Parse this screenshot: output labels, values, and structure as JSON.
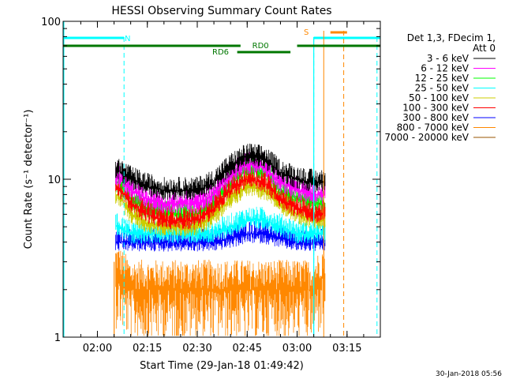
{
  "chart_data": {
    "type": "line",
    "title": "HESSI Observing Summary Count Rates",
    "xlabel": "Start Time (29-Jan-18 01:49:42)",
    "ylabel": "Count Rate (s⁻¹ detector⁻¹)",
    "yscale": "log",
    "xlim": [
      "01:49:42",
      "03:25:00"
    ],
    "ylim": [
      1,
      100
    ],
    "x_ticks": [
      "02:00",
      "02:15",
      "02:30",
      "02:45",
      "03:00",
      "03:15"
    ],
    "y_ticks": [
      "1",
      "10",
      "100"
    ],
    "grid": false,
    "legend_placement": "right",
    "legend_header": [
      "Det 1,3, FDecim 1,",
      "Att 0"
    ],
    "timestamp": "30-Jan-2018 05:56",
    "annotations": {
      "night_label": "N",
      "saa_label": "S",
      "rd0_label": "RD0",
      "rd6_label": "RD6"
    },
    "colors": {
      "3-6": "#000000",
      "6-12": "#ff00ff",
      "12-25": "#00ff00",
      "25-50": "#00ffff",
      "50-100": "#cccc00",
      "100-300": "#ff0000",
      "300-800": "#0000ff",
      "800-7000": "#ff8800",
      "7000-20000": "#995500",
      "night": "#00ffff",
      "saa": "#ff8800",
      "rd": "#007700"
    },
    "markers": {
      "night_bars": [
        [
          "01:49:42",
          "02:08:00"
        ],
        [
          "03:05:00",
          "03:25:00"
        ]
      ],
      "night_boundaries": [
        "02:08:00",
        "03:05:00",
        "03:24:00"
      ],
      "saa_bar": [
        "03:10:00",
        "03:15:00"
      ],
      "saa_boundaries": [
        "03:08:00",
        "03:14:00"
      ],
      "rd0_bars": [
        [
          "01:49:42",
          "02:43:00"
        ],
        [
          "03:00:00",
          "03:25:00"
        ]
      ],
      "rd0_label_time": "02:49:00",
      "rd6_bar": [
        "02:42:00",
        "02:58:00"
      ],
      "rd6_label_time": "02:37:00"
    },
    "data_window": [
      "02:05:30",
      "03:08:30"
    ],
    "series": [
      {
        "name": "3 - 6 keV",
        "color": "#000000",
        "x": [
          "02:06",
          "02:10",
          "02:15",
          "02:20",
          "02:25",
          "02:30",
          "02:35",
          "02:40",
          "02:45",
          "02:50",
          "02:55",
          "03:00",
          "03:05",
          "03:08"
        ],
        "values": [
          11.5,
          10.0,
          9.0,
          8.5,
          8.5,
          8.5,
          9.5,
          12.0,
          14.0,
          13.5,
          11.0,
          10.0,
          9.5,
          9.5
        ]
      },
      {
        "name": "6 - 12 keV",
        "color": "#ff00ff",
        "x": [
          "02:06",
          "02:10",
          "02:15",
          "02:20",
          "02:25",
          "02:30",
          "02:35",
          "02:40",
          "02:45",
          "02:50",
          "02:55",
          "03:00",
          "03:05",
          "03:08"
        ],
        "values": [
          10.5,
          8.5,
          7.5,
          7.0,
          7.0,
          7.0,
          8.0,
          10.5,
          12.5,
          12.0,
          9.5,
          8.5,
          8.0,
          8.0
        ]
      },
      {
        "name": "12 - 25 keV",
        "color": "#00ff00",
        "x": [
          "02:06",
          "02:10",
          "02:15",
          "02:20",
          "02:25",
          "02:30",
          "02:35",
          "02:40",
          "02:45",
          "02:50",
          "02:55",
          "03:00",
          "03:05",
          "03:08"
        ],
        "values": [
          9.5,
          7.5,
          6.5,
          6.0,
          6.0,
          6.0,
          7.0,
          9.5,
          11.5,
          11.0,
          8.5,
          7.5,
          7.0,
          7.0
        ]
      },
      {
        "name": "25 - 50 keV",
        "color": "#00ffff",
        "x": [
          "02:06",
          "02:10",
          "02:15",
          "02:20",
          "02:25",
          "02:30",
          "02:35",
          "02:40",
          "02:45",
          "02:50",
          "02:55",
          "03:00",
          "03:05",
          "03:08"
        ],
        "values": [
          5.0,
          4.5,
          4.5,
          4.5,
          4.5,
          4.5,
          4.5,
          5.0,
          5.5,
          5.5,
          5.0,
          4.5,
          4.5,
          4.5
        ]
      },
      {
        "name": "50 - 100 keV",
        "color": "#cccc00",
        "x": [
          "02:06",
          "02:10",
          "02:15",
          "02:20",
          "02:25",
          "02:30",
          "02:35",
          "02:40",
          "02:45",
          "02:50",
          "02:55",
          "03:00",
          "03:05",
          "03:08"
        ],
        "values": [
          8.0,
          6.0,
          5.2,
          5.0,
          5.0,
          5.0,
          5.8,
          7.5,
          9.0,
          8.5,
          7.0,
          6.0,
          5.5,
          5.5
        ]
      },
      {
        "name": "100 - 300 keV",
        "color": "#ff0000",
        "x": [
          "02:06",
          "02:10",
          "02:15",
          "02:20",
          "02:25",
          "02:30",
          "02:35",
          "02:40",
          "02:45",
          "02:50",
          "02:55",
          "03:00",
          "03:05",
          "03:08"
        ],
        "values": [
          9.0,
          7.0,
          6.0,
          5.5,
          5.5,
          5.5,
          6.5,
          8.5,
          10.0,
          9.5,
          7.5,
          6.5,
          6.0,
          6.0
        ]
      },
      {
        "name": "300 - 800 keV",
        "color": "#0000ff",
        "x": [
          "02:06",
          "02:10",
          "02:15",
          "02:20",
          "02:25",
          "02:30",
          "02:35",
          "02:40",
          "02:45",
          "02:50",
          "02:55",
          "03:00",
          "03:05",
          "03:08"
        ],
        "values": [
          4.0,
          4.0,
          4.0,
          4.0,
          4.0,
          4.0,
          4.0,
          4.2,
          4.5,
          4.5,
          4.2,
          4.0,
          4.0,
          4.0
        ]
      },
      {
        "name": "800 - 7000 keV",
        "color": "#ff8800",
        "x": [
          "02:06",
          "02:10",
          "02:15",
          "02:20",
          "02:25",
          "02:30",
          "02:35",
          "02:40",
          "02:45",
          "02:50",
          "02:55",
          "03:00",
          "03:05",
          "03:08"
        ],
        "values": [
          2.5,
          2.0,
          2.0,
          2.0,
          2.0,
          2.0,
          2.0,
          2.0,
          2.0,
          2.0,
          2.0,
          2.0,
          2.0,
          2.5
        ]
      },
      {
        "name": "7000 - 20000 keV",
        "color": "#995500",
        "x": [],
        "values": []
      }
    ]
  }
}
